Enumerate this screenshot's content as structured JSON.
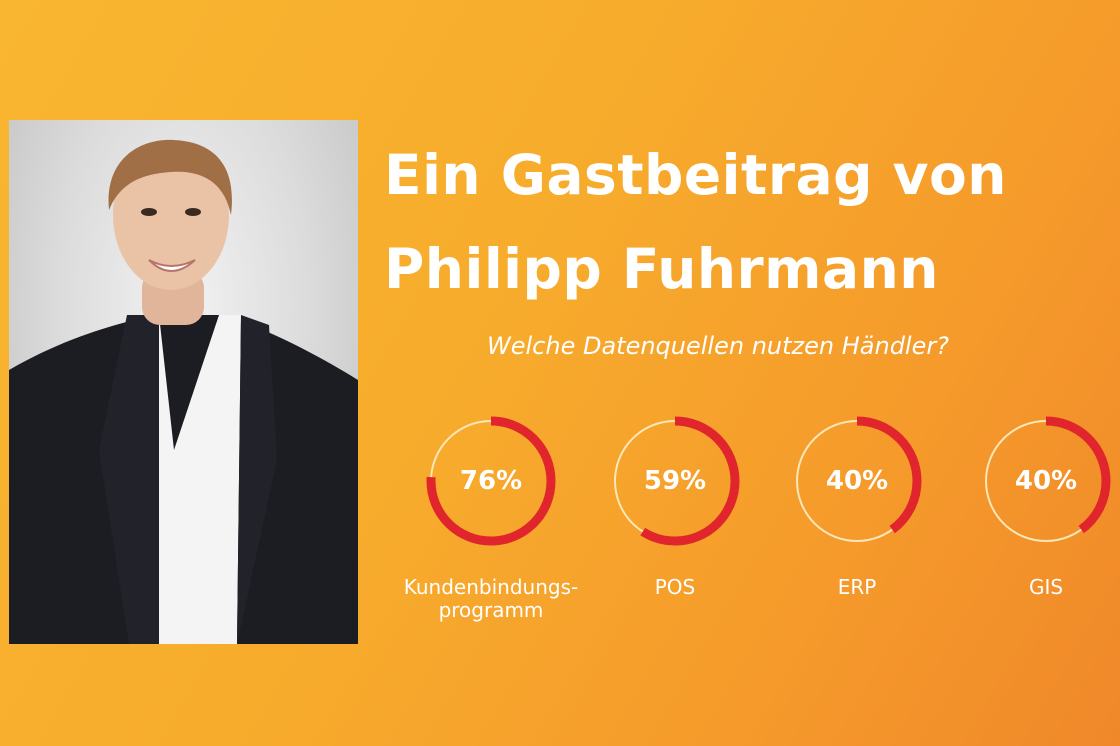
{
  "headline": {
    "line1": "Ein Gastbeitrag von",
    "line2": "Philipp Fuhrmann"
  },
  "subtitle": "Welche Datenquellen nutzen Händler?",
  "colors": {
    "background": "#f7ab2c",
    "ring_fill": "#e0262c",
    "ring_track": "#fde7b8",
    "text": "#ffffff"
  },
  "chart_data": {
    "type": "pie",
    "title": "Welche Datenquellen nutzen Händler?",
    "categories": [
      "Kundenbindungs-programm",
      "POS",
      "ERP",
      "GIS"
    ],
    "values": [
      76,
      59,
      40,
      40
    ],
    "display": [
      {
        "value_text": "76%",
        "label_lines": [
          "Kundenbindungs-",
          "programm"
        ]
      },
      {
        "value_text": "59%",
        "label_lines": [
          "POS"
        ]
      },
      {
        "value_text": "40%",
        "label_lines": [
          "ERP"
        ]
      },
      {
        "value_text": "40%",
        "label_lines": [
          "GIS"
        ]
      }
    ]
  }
}
